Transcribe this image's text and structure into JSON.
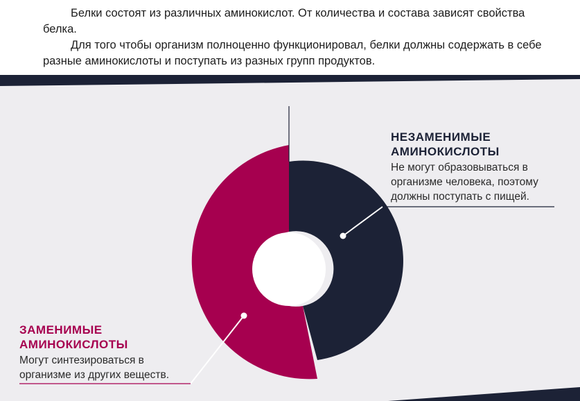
{
  "text": {
    "paragraph_1": "Белки состоят из различных аминокислот. От количества и состава зависят свойства белка.",
    "paragraph_2": "Для того чтобы организм полноценно функционировал, белки должны содержать в себе разные аминокислоты и поступать из разных групп продуктов."
  },
  "diagram": {
    "segments": [
      {
        "key": "essential",
        "title_line_1": "НЕЗАМЕНИМЫЕ",
        "title_line_2": "АМИНОКИСЛОТЫ",
        "desc_line_1": "Не могут образовываться в",
        "desc_line_2": "организме человека, поэтому",
        "desc_line_3": "должны поступать с пищей.",
        "color": "#1c2236"
      },
      {
        "key": "nonessential",
        "title_line_1": "ЗАМЕНИМЫЕ",
        "title_line_2": "АМИНОКИСЛОТЫ",
        "desc_line_1": "Могут синтезироваться в",
        "desc_line_2": "организме из других веществ.",
        "color": "#a6004f"
      }
    ],
    "panel_color": "#eeedf0",
    "band_color": "#1c2236"
  }
}
